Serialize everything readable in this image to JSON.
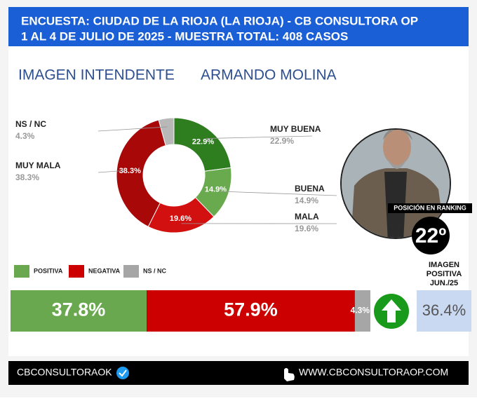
{
  "header": {
    "line1": "ENCUESTA: CIUDAD DE LA RIOJA (LA RIOJA) - CB CONSULTORA OP",
    "line2": "1 AL 4 DE JULIO DE 2025 - MUESTRA TOTAL: 408 CASOS"
  },
  "chart_data": [
    {
      "type": "donut",
      "title": "IMAGEN INTENDENTE",
      "subtitle": "ARMANDO MOLINA",
      "categories": [
        "MUY BUENA",
        "BUENA",
        "MALA",
        "MUY MALA",
        "NS / NC"
      ],
      "values": [
        22.9,
        14.9,
        19.6,
        38.3,
        4.3
      ],
      "value_labels": [
        "22.9%",
        "14.9%",
        "19.6%",
        "38.3%",
        "4.3%"
      ],
      "colors": [
        "#2e7d1f",
        "#6aaa4f",
        "#d21010",
        "#a80808",
        "#b8b8b8"
      ]
    },
    {
      "type": "stacked-bar",
      "categories": [
        "POSITIVA",
        "NEGATIVA",
        "NS / NC"
      ],
      "values": [
        37.8,
        57.9,
        4.3
      ],
      "value_labels": [
        "37.8%",
        "57.9%",
        "4.3%"
      ],
      "colors": [
        "#6aa84f",
        "#cc0000",
        "#a6a6a6"
      ]
    }
  ],
  "ranking": {
    "label": "POSICIÓN EN RANKING",
    "value": "22º"
  },
  "previous": {
    "label_lines": [
      "IMAGEN",
      "POSITIVA",
      "JUN./25"
    ],
    "value": "36.4%"
  },
  "footer": {
    "account": "CBCONSULTORAOK",
    "website": "WWW.CBCONSULTORAOP.COM"
  }
}
